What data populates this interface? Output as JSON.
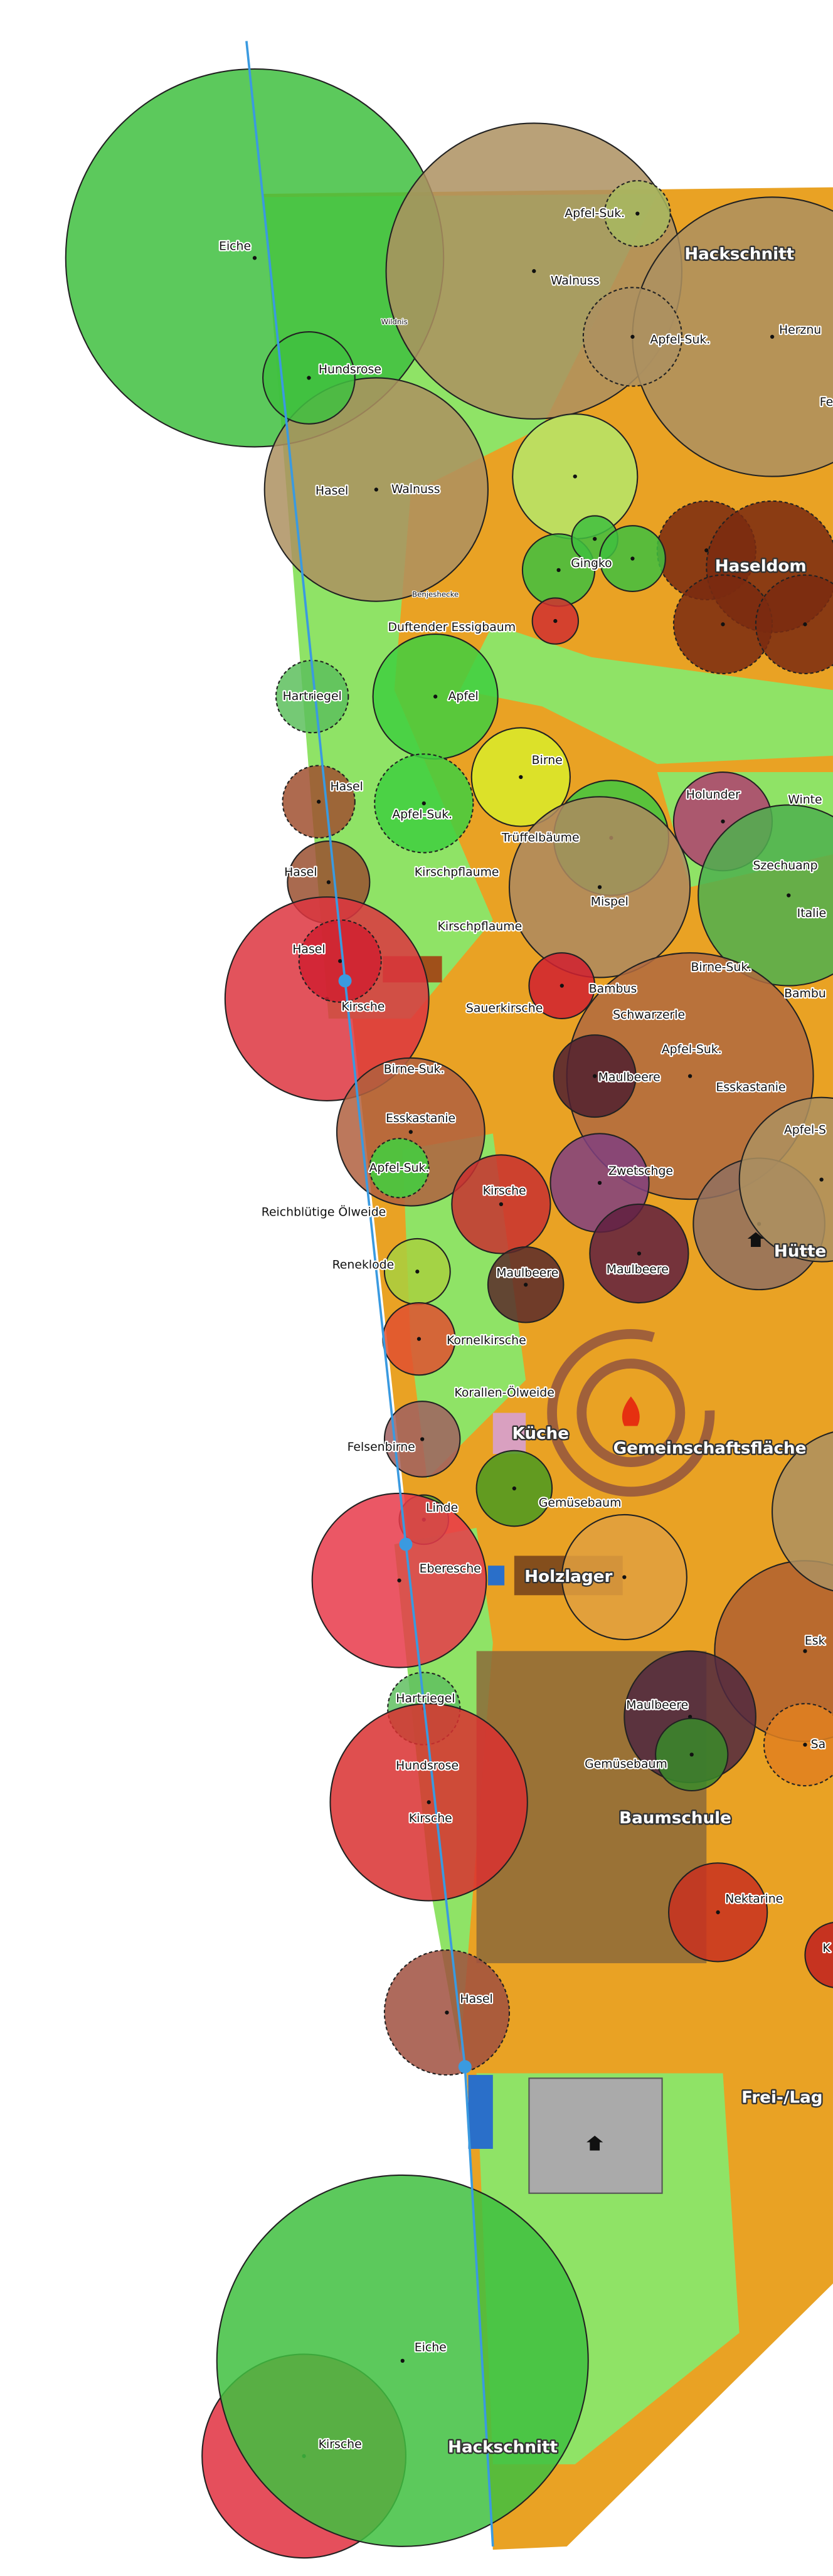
{
  "labels": [
    "Eiche",
    "Apfel-Suk.",
    "Hackschnitt",
    "Wildnis",
    "Walnuss",
    "Apfel-Suk.",
    "Herznu",
    "Hundsrose",
    "Fe",
    "Hasel",
    "Walnuss",
    "Gingko",
    "Haseldom",
    "Benjeshecke",
    "Duftender Essigbaum",
    "Hartriegel",
    "Apfel",
    "Birne",
    "Hasel",
    "Holunder",
    "Winte",
    "Apfel-Suk.",
    "Trüffelbäume",
    "Hasel",
    "Kirschpflaume",
    "Szechuanp",
    "Mispel",
    "Italie",
    "Kirschpflaume",
    "Hasel",
    "Birne-Suk.",
    "Bambus",
    "Bambu",
    "Kirsche",
    "Sauerkirsche",
    "Schwarzerle",
    "Apfel-Suk.",
    "Birne-Suk.",
    "Maulbeere",
    "Esskastanie",
    "Esskastanie",
    "Apfel-S",
    "Apfel-Suk.",
    "Zwetschge",
    "Kirsche",
    "Reichblütige Ölweide",
    "Hütte",
    "Reneklode",
    "Maulbeere",
    "Maulbeere",
    "Kornelkirsche",
    "Korallen-Ölweide",
    "Küche",
    "Gemeinschaftsfläche",
    "Felsenbirne",
    "Linde",
    "Gemüsebaum",
    "Eberesche",
    "Holzlager",
    "Esk",
    "Hartriegel",
    "Maulbeere",
    "Hundsrose",
    "Gemüsebaum",
    "Sa",
    "Kirsche",
    "Baumschule",
    "Nektarine",
    "K",
    "Hasel",
    "Frei-/Lag",
    "Eiche",
    "Kirsche",
    "Hackschnitt"
  ]
}
